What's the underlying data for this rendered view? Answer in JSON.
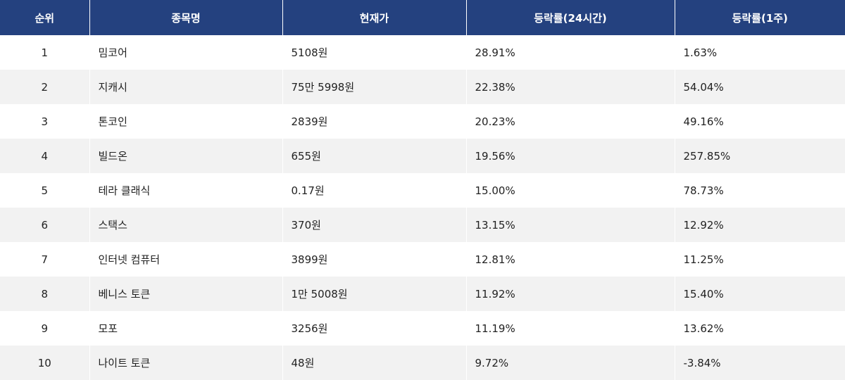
{
  "chart_data": {
    "type": "table",
    "columns": [
      "순위",
      "종목명",
      "현재가",
      "등락률(24시간)",
      "등락률(1주)"
    ],
    "rows": [
      {
        "rank": "1",
        "name": "밈코어",
        "price": "5108원",
        "change_24h": "28.91%",
        "change_1w": "1.63%"
      },
      {
        "rank": "2",
        "name": "지캐시",
        "price": "75만 5998원",
        "change_24h": "22.38%",
        "change_1w": "54.04%"
      },
      {
        "rank": "3",
        "name": "톤코인",
        "price": "2839원",
        "change_24h": "20.23%",
        "change_1w": "49.16%"
      },
      {
        "rank": "4",
        "name": "빌드온",
        "price": "655원",
        "change_24h": "19.56%",
        "change_1w": "257.85%"
      },
      {
        "rank": "5",
        "name": "테라 클래식",
        "price": "0.17원",
        "change_24h": "15.00%",
        "change_1w": "78.73%"
      },
      {
        "rank": "6",
        "name": "스택스",
        "price": "370원",
        "change_24h": "13.15%",
        "change_1w": "12.92%"
      },
      {
        "rank": "7",
        "name": "인터넷 컴퓨터",
        "price": "3899원",
        "change_24h": "12.81%",
        "change_1w": "11.25%"
      },
      {
        "rank": "8",
        "name": "베니스 토큰",
        "price": "1만 5008원",
        "change_24h": "11.92%",
        "change_1w": "15.40%"
      },
      {
        "rank": "9",
        "name": "모포",
        "price": "3256원",
        "change_24h": "11.19%",
        "change_1w": "13.62%"
      },
      {
        "rank": "10",
        "name": "나이트 토큰",
        "price": "48원",
        "change_24h": "9.72%",
        "change_1w": "-3.84%"
      }
    ]
  },
  "colors": {
    "header_bg": "#24417f",
    "header_text": "#ffffff",
    "row_alt_bg": "#f2f2f2",
    "body_text": "#222222"
  }
}
